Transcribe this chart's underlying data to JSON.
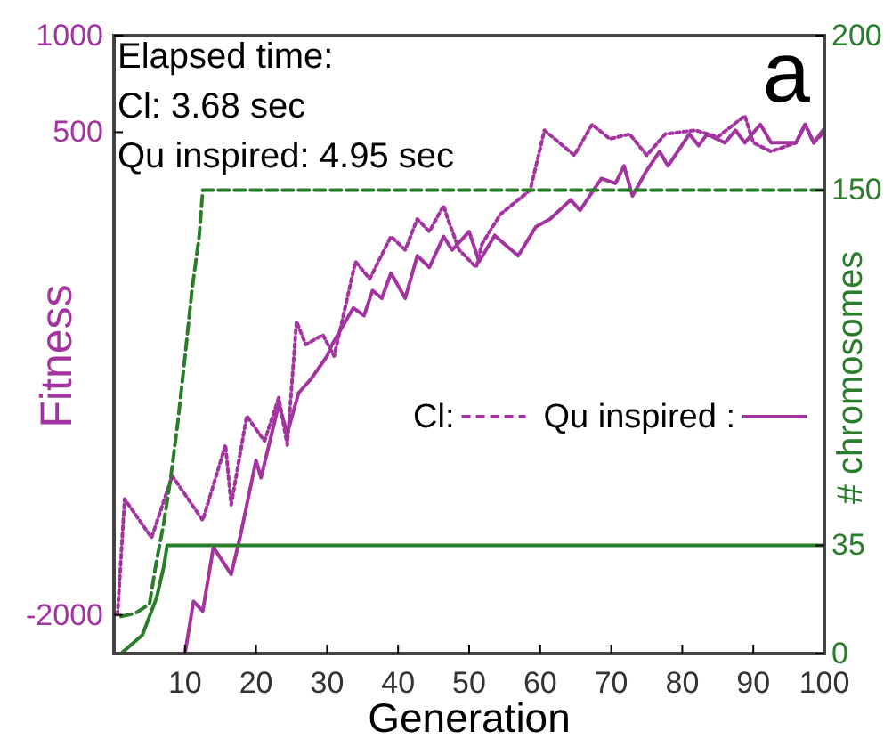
{
  "chart_data": {
    "type": "line",
    "xlabel": "Generation",
    "ylabel": "Fitness",
    "y2label": "# chromosomes",
    "annotations": [
      "Elapsed time:",
      "Cl: 3.68 sec",
      "Qu inspired: 4.95 sec",
      "a"
    ],
    "xlim": [
      0,
      100
    ],
    "xticks": [
      10,
      20,
      30,
      40,
      50,
      60,
      70,
      80,
      90,
      100
    ],
    "ylim": [
      -2200,
      1000
    ],
    "yticks": [
      -2000,
      500,
      1000
    ],
    "y2lim": [
      0,
      200
    ],
    "y2ticks": [
      0,
      35,
      150,
      200
    ],
    "legend": "right",
    "grid": false,
    "series": [
      {
        "name": "Cl:",
        "color": "#a3339f",
        "line_style": "dotted",
        "x": [
          0.5,
          1.5,
          5.3,
          8.2,
          12.5,
          15.7,
          16.5,
          18.7,
          21.2,
          23.2,
          24.4,
          25.7,
          27,
          29.4,
          31,
          34,
          36,
          39,
          41,
          42.7,
          44.4,
          46.4,
          47,
          48.6,
          51,
          51.8,
          54.4,
          58.6,
          60.6,
          64.8,
          67.3,
          69.8,
          72.6,
          75,
          77.6,
          81.8,
          85,
          88.8,
          90,
          92.5,
          96,
          97.3,
          98.5,
          99.7
        ],
        "values": [
          -2000,
          -1400,
          -1600,
          -1280,
          -1510,
          -1120,
          -1430,
          -970,
          -1100,
          -875,
          -1120,
          -480,
          -600,
          -550,
          -660,
          -170,
          -260,
          -40,
          -110,
          50,
          -15,
          120,
          50,
          -110,
          -200,
          -80,
          75,
          200,
          510,
          380,
          540,
          465,
          490,
          380,
          490,
          510,
          475,
          585,
          445,
          400,
          445,
          540,
          445,
          490
        ]
      },
      {
        "name": "Qu inspired :",
        "color": "#a3339f",
        "line_style": "solid",
        "x": [
          10,
          11.2,
          12.5,
          14,
          16.5,
          17.8,
          20,
          20.7,
          23.2,
          24.4,
          26,
          27.7,
          30,
          30.7,
          33.7,
          35.2,
          36.4,
          37.7,
          39,
          41,
          42.7,
          44.4,
          46.4,
          47.6,
          50,
          51.4,
          53.6,
          55,
          56.9,
          59.4,
          61.4,
          64.3,
          65.6,
          68.6,
          70.6,
          71.8,
          73,
          74.8,
          76.8,
          78,
          81,
          82.3,
          83.5,
          86,
          87.5,
          88.8,
          91,
          92.5,
          96,
          97.3,
          98.5,
          100
        ],
        "values": [
          -2200,
          -1930,
          -1980,
          -1650,
          -1790,
          -1590,
          -1200,
          -1290,
          -910,
          -1060,
          -850,
          -780,
          -660,
          -600,
          -410,
          -450,
          -320,
          -360,
          -230,
          -360,
          -140,
          -200,
          -40,
          -110,
          -15,
          -170,
          -35,
          -80,
          -140,
          10,
          50,
          150,
          95,
          260,
          235,
          325,
          170,
          290,
          400,
          325,
          490,
          430,
          490,
          445,
          510,
          445,
          540,
          445,
          445,
          540,
          445,
          520
        ]
      },
      {
        "color": "#2a7d2a",
        "axis": "y2",
        "line_style": "dashed",
        "x": [
          1,
          3,
          5,
          6,
          7,
          8,
          9,
          10,
          11,
          12,
          12.5,
          100
        ],
        "values": [
          12,
          13,
          16,
          30,
          42,
          57,
          75,
          96,
          118,
          135,
          150,
          150
        ]
      },
      {
        "color": "#2a7d2a",
        "axis": "y2",
        "line_style": "solid",
        "x": [
          1,
          4,
          5,
          6,
          7,
          7.5,
          100
        ],
        "values": [
          0,
          6,
          12,
          18,
          28,
          35,
          35
        ]
      }
    ]
  }
}
